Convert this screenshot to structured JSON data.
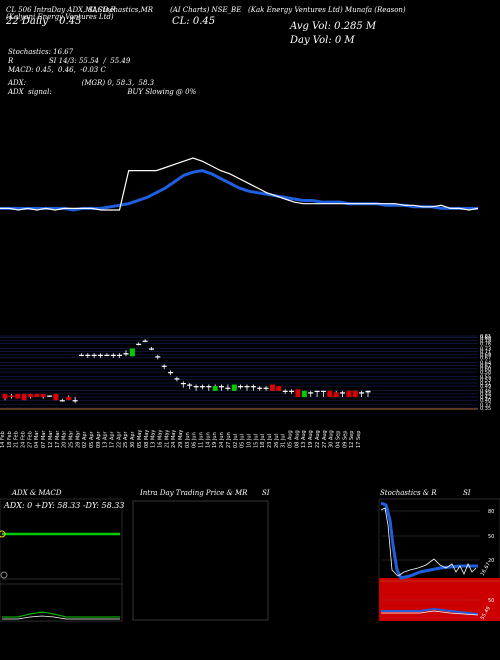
{
  "header": {
    "c1": "CL 506 IntraDay ADX,MACD,R",
    "c1b": "(Kalyani Energy Ventures Ltd)",
    "c2": "SI,Stochastics,MR",
    "c3": "(AI Charts)",
    "c3b": "NSE_BE",
    "c4": "(Kak Energy Ventures Ltd) Munafa (Reason)",
    "date": "22 Daily",
    "price_label": "0.45",
    "cl": "CL: 0.45",
    "avg_vol": "Avg Vol: 0.285  M",
    "day_vol": "Day Vol: 0   M"
  },
  "indicators": {
    "stoch": "Stochastics: 16.67",
    "rsi": "R                SI 14/3: 55.54  /  55.49",
    "macd": "MACD: 0.45,  0.46,  -0.03 C",
    "adx": "ADX:                         (MGR) 0, 58.3,  58.3",
    "adx_signal": "ADX  signal:                                  BUY Slowing @ 0%"
  },
  "chart_data": [
    {
      "type": "line",
      "x": [
        "14 Feb",
        "18 Feb",
        "21 Feb",
        "24 Feb",
        "27 Feb",
        "04 Mar",
        "07 Mar",
        "12 Mar",
        "17 Mar",
        "20 Mar",
        "25 Mar",
        "28 Mar",
        "02 Apr",
        "05 Apr",
        "09 Apr",
        "13 Apr",
        "17 Apr",
        "22 Apr",
        "25 Apr",
        "30 Apr",
        "05 May",
        "08 May",
        "13 May",
        "16 May",
        "21 May",
        "24 May",
        "29 May",
        "03 Jun",
        "06 Jun",
        "11 Jun",
        "14 Jun",
        "19 Jun",
        "24 Jun",
        "27 Jun",
        "02 Jul",
        "05 Jul",
        "10 Jul",
        "15 Jul",
        "18 Jul",
        "23 Jul",
        "26 Jul",
        "31 Jul",
        "05 Aug",
        "08 Aug",
        "13 Aug",
        "19 Aug",
        "22 Aug",
        "27 Aug",
        "30 Aug",
        "04 Sep",
        "09 Sep",
        "12 Sep",
        "17 Sep"
      ],
      "series": [
        {
          "values": [
            0.45,
            0.45,
            0.44,
            0.45,
            0.44,
            0.45,
            0.44,
            0.45,
            0.45,
            0.45,
            0.45,
            0.44,
            0.44,
            0.44,
            0.69,
            0.69,
            0.69,
            0.69,
            0.71,
            0.73,
            0.75,
            0.77,
            0.75,
            0.72,
            0.69,
            0.67,
            0.64,
            0.61,
            0.58,
            0.55,
            0.53,
            0.51,
            0.49,
            0.48,
            0.48,
            0.48,
            0.48,
            0.48,
            0.48,
            0.48,
            0.48,
            0.48,
            0.48,
            0.48,
            0.47,
            0.47,
            0.46,
            0.46,
            0.47,
            0.45,
            0.45,
            0.44,
            0.45
          ]
        },
        {
          "values": [
            0.45,
            0.45,
            0.45,
            0.45,
            0.45,
            0.45,
            0.45,
            0.45,
            0.44,
            0.45,
            0.45,
            0.45,
            0.46,
            0.47,
            0.48,
            0.5,
            0.52,
            0.55,
            0.58,
            0.62,
            0.66,
            0.68,
            0.69,
            0.67,
            0.64,
            0.61,
            0.58,
            0.56,
            0.55,
            0.54,
            0.53,
            0.52,
            0.51,
            0.5,
            0.5,
            0.49,
            0.49,
            0.49,
            0.48,
            0.48,
            0.48,
            0.48,
            0.47,
            0.47,
            0.47,
            0.46,
            0.46,
            0.46,
            0.45,
            0.45,
            0.45,
            0.45,
            0.45
          ]
        }
      ]
    },
    {
      "type": "bar",
      "y_ticks": [
        "0.81",
        "0.80",
        "0.78",
        "0.76",
        "0.73",
        "0.71",
        "0.69",
        "0.67",
        "0.64",
        "0.62",
        "0.60",
        "0.58",
        "0.55",
        "0.53",
        "0.51",
        "0.49",
        "0.46",
        "0.44",
        "0.42",
        "0.40",
        "0.37",
        "0.35"
      ],
      "ohlc": [
        [
          0.41,
          0.44,
          0.4,
          0.44,
          "r"
        ],
        [
          0.42,
          0.44,
          0.41,
          0.43,
          "r"
        ],
        [
          0.41,
          0.44,
          0.41,
          0.44,
          "r"
        ],
        [
          0.4,
          0.44,
          0.4,
          0.44,
          "r"
        ],
        [
          0.42,
          0.44,
          0.41,
          0.44,
          "r"
        ],
        [
          0.42,
          0.44,
          0.42,
          0.44,
          "r"
        ],
        [
          0.42,
          0.44,
          0.41,
          0.44,
          "r"
        ],
        [
          0.43,
          0.43,
          0.42,
          0.43,
          "w"
        ],
        [
          0.4,
          0.44,
          0.4,
          0.44,
          "r"
        ],
        [
          0.4,
          0.41,
          0.39,
          0.4,
          "w"
        ],
        [
          0.4,
          0.43,
          0.4,
          0.42,
          "r"
        ],
        [
          0.4,
          0.42,
          0.38,
          0.4,
          "w"
        ],
        [
          0.69,
          0.7,
          0.68,
          0.69,
          "w"
        ],
        [
          0.69,
          0.7,
          0.67,
          0.69,
          "w"
        ],
        [
          0.69,
          0.7,
          0.67,
          0.69,
          "w"
        ],
        [
          0.69,
          0.7,
          0.67,
          0.69,
          "w"
        ],
        [
          0.69,
          0.7,
          0.68,
          0.69,
          "w"
        ],
        [
          0.69,
          0.7,
          0.67,
          0.69,
          "w"
        ],
        [
          0.69,
          0.7,
          0.67,
          0.69,
          "w"
        ],
        [
          0.7,
          0.72,
          0.68,
          0.7,
          "w"
        ],
        [
          0.68,
          0.73,
          0.68,
          0.73,
          "g"
        ],
        [
          0.76,
          0.77,
          0.75,
          0.76,
          "w"
        ],
        [
          0.78,
          0.79,
          0.77,
          0.78,
          "w"
        ],
        [
          0.73,
          0.74,
          0.72,
          0.73,
          "w"
        ],
        [
          0.68,
          0.69,
          0.66,
          0.68,
          "w"
        ],
        [
          0.62,
          0.63,
          0.6,
          0.62,
          "w"
        ],
        [
          0.58,
          0.59,
          0.56,
          0.58,
          "w"
        ],
        [
          0.54,
          0.55,
          0.52,
          0.54,
          "w"
        ],
        [
          0.51,
          0.52,
          0.48,
          0.51,
          "w"
        ],
        [
          0.5,
          0.51,
          0.47,
          0.5,
          "w"
        ],
        [
          0.49,
          0.5,
          0.46,
          0.49,
          "w"
        ],
        [
          0.49,
          0.5,
          0.47,
          0.49,
          "w"
        ],
        [
          0.49,
          0.5,
          0.46,
          0.49,
          "w"
        ],
        [
          0.46,
          0.5,
          0.46,
          0.49,
          "g"
        ],
        [
          0.49,
          0.5,
          0.46,
          0.49,
          "w"
        ],
        [
          0.48,
          0.5,
          0.46,
          0.48,
          "w"
        ],
        [
          0.46,
          0.5,
          0.46,
          0.5,
          "g"
        ],
        [
          0.49,
          0.5,
          0.47,
          0.49,
          "w"
        ],
        [
          0.49,
          0.5,
          0.46,
          0.49,
          "w"
        ],
        [
          0.49,
          0.5,
          0.46,
          0.49,
          "w"
        ],
        [
          0.48,
          0.49,
          0.46,
          0.48,
          "w"
        ],
        [
          0.48,
          0.49,
          0.46,
          0.48,
          "w"
        ],
        [
          0.46,
          0.5,
          0.46,
          0.5,
          "r"
        ],
        [
          0.46,
          0.49,
          0.46,
          0.49,
          "r"
        ],
        [
          0.46,
          0.47,
          0.44,
          0.46,
          "w"
        ],
        [
          0.46,
          0.47,
          0.44,
          0.46,
          "w"
        ],
        [
          0.42,
          0.47,
          0.42,
          0.47,
          "r"
        ],
        [
          0.42,
          0.46,
          0.42,
          0.46,
          "g"
        ],
        [
          0.45,
          0.46,
          0.42,
          0.45,
          "w"
        ],
        [
          0.46,
          0.46,
          0.42,
          0.46,
          "w"
        ],
        [
          0.46,
          0.46,
          0.42,
          0.46,
          "w"
        ],
        [
          0.42,
          0.46,
          0.42,
          0.46,
          "r"
        ],
        [
          0.42,
          0.46,
          0.42,
          0.45,
          "r"
        ],
        [
          0.45,
          0.46,
          0.42,
          0.45,
          "w"
        ],
        [
          0.42,
          0.46,
          0.42,
          0.46,
          "r"
        ],
        [
          0.42,
          0.46,
          0.42,
          0.46,
          "r"
        ],
        [
          0.45,
          0.46,
          0.42,
          0.45,
          "w"
        ],
        [
          0.45,
          0.46,
          0.42,
          0.46,
          "w"
        ]
      ]
    }
  ],
  "panels": {
    "adx_title": "ADX  & MACD",
    "adx_values": "ADX: 0   +DY: 58.33 -DY: 58.33",
    "intraday_title": "Intra  Day Trading Price  & MR",
    "intraday_si": "SI",
    "stoch_title": "Stochastics & R",
    "stoch_si": "SI",
    "stoch_ticks": [
      "80",
      "50",
      "20"
    ],
    "rsi_ticks": [
      "50"
    ],
    "stoch_value": "16.67",
    "rsi_value": "55.49"
  },
  "colors": {
    "price": "#ffffff",
    "avg": "#1f5fe0",
    "green": "#00cc00",
    "red": "#dd0000"
  }
}
